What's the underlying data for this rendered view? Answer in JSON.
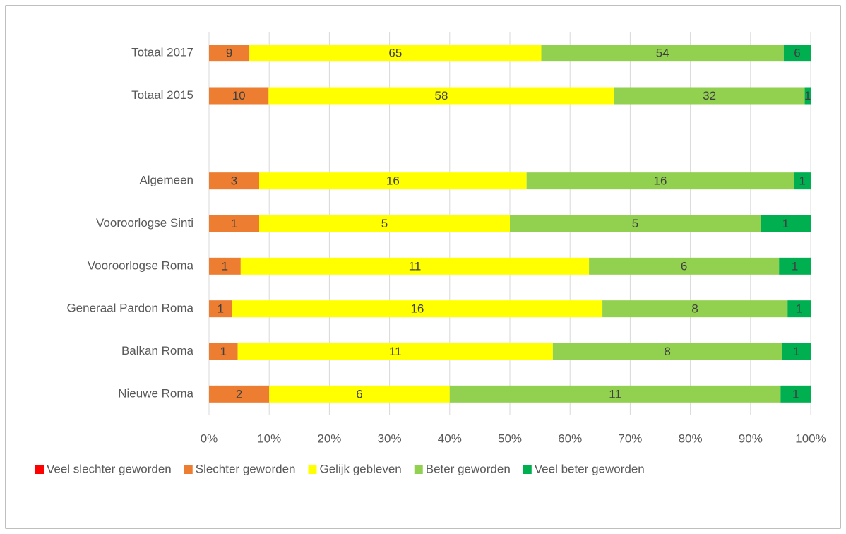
{
  "chart_data": {
    "type": "bar",
    "orientation": "horizontal",
    "stacking": "percent",
    "categories": [
      "Totaal 2017",
      "Totaal 2015",
      null,
      "Algemeen",
      "Vooroorlogse Sinti",
      "Vooroorlogse Roma",
      "Generaal Pardon Roma",
      "Balkan Roma",
      "Nieuwe Roma"
    ],
    "series": [
      {
        "name": "Veel slechter geworden",
        "color": "#ff0000",
        "values": [
          0,
          0,
          null,
          0,
          0,
          0,
          0,
          0,
          0
        ]
      },
      {
        "name": "Slechter geworden",
        "color": "#ed7d31",
        "values": [
          9,
          10,
          null,
          3,
          1,
          1,
          1,
          1,
          2
        ]
      },
      {
        "name": "Gelijk gebleven",
        "color": "#ffff00",
        "values": [
          65,
          58,
          null,
          16,
          5,
          11,
          16,
          11,
          6
        ]
      },
      {
        "name": "Beter geworden",
        "color": "#92d050",
        "values": [
          54,
          32,
          null,
          16,
          5,
          6,
          8,
          8,
          11
        ]
      },
      {
        "name": "Veel beter geworden",
        "color": "#00b050",
        "values": [
          6,
          1,
          null,
          1,
          1,
          1,
          1,
          1,
          1
        ]
      }
    ],
    "xlim": [
      0,
      100
    ],
    "xticks": [
      {
        "value": 0,
        "label": "0%"
      },
      {
        "value": 10,
        "label": "10%"
      },
      {
        "value": 20,
        "label": "20%"
      },
      {
        "value": 30,
        "label": "30%"
      },
      {
        "value": 40,
        "label": "40%"
      },
      {
        "value": 50,
        "label": "50%"
      },
      {
        "value": 60,
        "label": "60%"
      },
      {
        "value": 70,
        "label": "70%"
      },
      {
        "value": 80,
        "label": "80%"
      },
      {
        "value": 90,
        "label": "90%"
      },
      {
        "value": 100,
        "label": "100%"
      }
    ],
    "grid": true,
    "legend": "bottom"
  }
}
